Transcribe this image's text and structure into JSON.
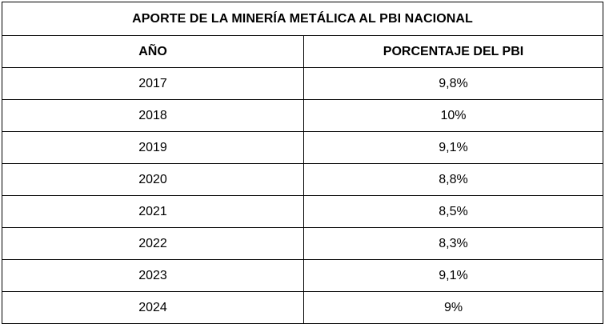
{
  "table": {
    "title": "APORTE DE LA MINERÍA METÁLICA AL PBI NACIONAL",
    "columns": [
      "AÑO",
      "PORCENTAJE DEL PBI"
    ],
    "rows": [
      {
        "year": "2017",
        "percent": "9,8%"
      },
      {
        "year": "2018",
        "percent": "10%"
      },
      {
        "year": "2019",
        "percent": "9,1%"
      },
      {
        "year": "2020",
        "percent": "8,8%"
      },
      {
        "year": "2021",
        "percent": "8,5%"
      },
      {
        "year": "2022",
        "percent": "8,3%"
      },
      {
        "year": "2023",
        "percent": "9,1%"
      },
      {
        "year": "2024",
        "percent": "9%"
      }
    ]
  }
}
